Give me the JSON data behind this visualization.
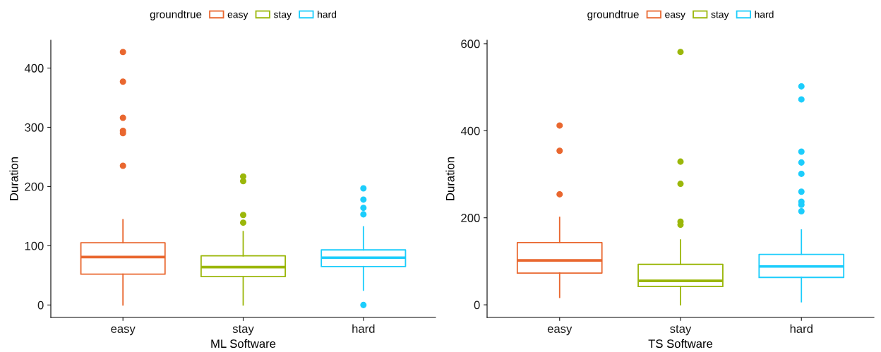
{
  "chart_data": [
    {
      "type": "box",
      "categories": [
        "easy",
        "stay",
        "hard"
      ],
      "xlabel": "ML Software",
      "ylabel": "Duration",
      "legend_title": "groundtrue",
      "legend": "top",
      "grid": false,
      "ylim": [
        -21,
        447
      ],
      "yticks": [
        0,
        100,
        200,
        300,
        400
      ],
      "series": [
        {
          "name": "easy",
          "color": "#e9672f",
          "boxes": [
            {
              "low": 0,
              "q1": 52,
              "median": 81,
              "q3": 105,
              "high": 144,
              "outliers": [
                427,
                377,
                316,
                294,
                290,
                235
              ]
            },
            null,
            null
          ]
        },
        {
          "name": "stay",
          "color": "#9bb70a",
          "boxes": [
            null,
            {
              "low": 0,
              "q1": 48,
              "median": 64,
              "q3": 83,
              "high": 124,
              "outliers": [
                217,
                209,
                152,
                139
              ]
            },
            null
          ]
        },
        {
          "name": "hard",
          "color": "#1ccdfc",
          "boxes": [
            null,
            null,
            {
              "low": 25,
              "q1": 65,
              "median": 80,
              "q3": 93,
              "high": 132,
              "outliers": [
                197,
                178,
                164,
                153,
                0
              ]
            }
          ]
        }
      ]
    },
    {
      "type": "box",
      "categories": [
        "easy",
        "stay",
        "hard"
      ],
      "xlabel": "TS Software",
      "ylabel": "Duration",
      "legend_title": "groundtrue",
      "legend": "top",
      "grid": false,
      "ylim": [
        -29,
        608
      ],
      "yticks": [
        0,
        200,
        400,
        600
      ],
      "series": [
        {
          "name": "easy",
          "color": "#e9672f",
          "boxes": [
            {
              "low": 17,
              "q1": 73,
              "median": 102,
              "q3": 143,
              "high": 201,
              "outliers": [
                254,
                354,
                412
              ]
            },
            null,
            null
          ]
        },
        {
          "name": "stay",
          "color": "#9bb70a",
          "boxes": [
            null,
            {
              "low": 0,
              "q1": 42,
              "median": 55,
              "q3": 93,
              "high": 149,
              "outliers": [
                581,
                329,
                278,
                191,
                184
              ]
            },
            null
          ]
        },
        {
          "name": "hard",
          "color": "#1ccdfc",
          "boxes": [
            null,
            null,
            {
              "low": 7,
              "q1": 63,
              "median": 88,
              "q3": 116,
              "high": 172,
              "outliers": [
                502,
                472,
                352,
                327,
                301,
                260,
                237,
                230,
                215
              ]
            }
          ]
        }
      ]
    }
  ]
}
